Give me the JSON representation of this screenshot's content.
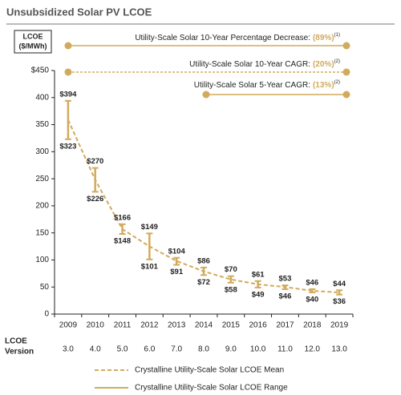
{
  "chart_data": {
    "type": "range",
    "title": "Unsubsidized Solar PV LCOE",
    "y_label": [
      "LCOE",
      "($/MWh)"
    ],
    "categories": [
      "2009",
      "2010",
      "2011",
      "2012",
      "2013",
      "2014",
      "2015",
      "2016",
      "2017",
      "2018",
      "2019"
    ],
    "version_label": [
      "LCOE",
      "Version"
    ],
    "versions": [
      "3.0",
      "4.0",
      "5.0",
      "6.0",
      "7.0",
      "8.0",
      "9.0",
      "10.0",
      "11.0",
      "12.0",
      "13.0"
    ],
    "ylim": [
      0,
      450
    ],
    "yticks": [
      {
        "value": 450,
        "label": "$450"
      },
      400,
      350,
      300,
      250,
      200,
      150,
      100,
      50,
      0
    ],
    "range": {
      "name": "Crystalline Utility-Scale Solar LCOE Range",
      "color": "#d2aa5c",
      "high": [
        394,
        270,
        166,
        149,
        104,
        86,
        70,
        61,
        53,
        46,
        44
      ],
      "high_labels": [
        "$394",
        "$270",
        "$166",
        "$149",
        "$104",
        "$86",
        "$70",
        "$61",
        "$53",
        "$46",
        "$44"
      ],
      "low": [
        323,
        226,
        148,
        101,
        91,
        72,
        58,
        49,
        46,
        40,
        36
      ],
      "low_labels": [
        "$323",
        "$226",
        "$148",
        "$101",
        "$91",
        "$72",
        "$58",
        "$49",
        "$46",
        "$40",
        "$36"
      ]
    },
    "mean": {
      "name": "Crystalline Utility-Scale Solar LCOE Mean",
      "color": "#d2aa5c",
      "values": [
        359,
        248,
        157,
        125,
        98,
        79,
        64,
        55,
        50,
        43,
        40
      ]
    },
    "annotations": [
      {
        "text": "Utility-Scale Solar 10-Year Percentage Decrease:",
        "value": "(89%)",
        "note": "(1)"
      },
      {
        "text": "Utility-Scale Solar 10-Year CAGR:",
        "value": "(20%)",
        "note": "(2)"
      },
      {
        "text": "Utility-Scale Solar 5-Year CAGR:",
        "value": "(13%)",
        "note": "(2)"
      }
    ]
  }
}
